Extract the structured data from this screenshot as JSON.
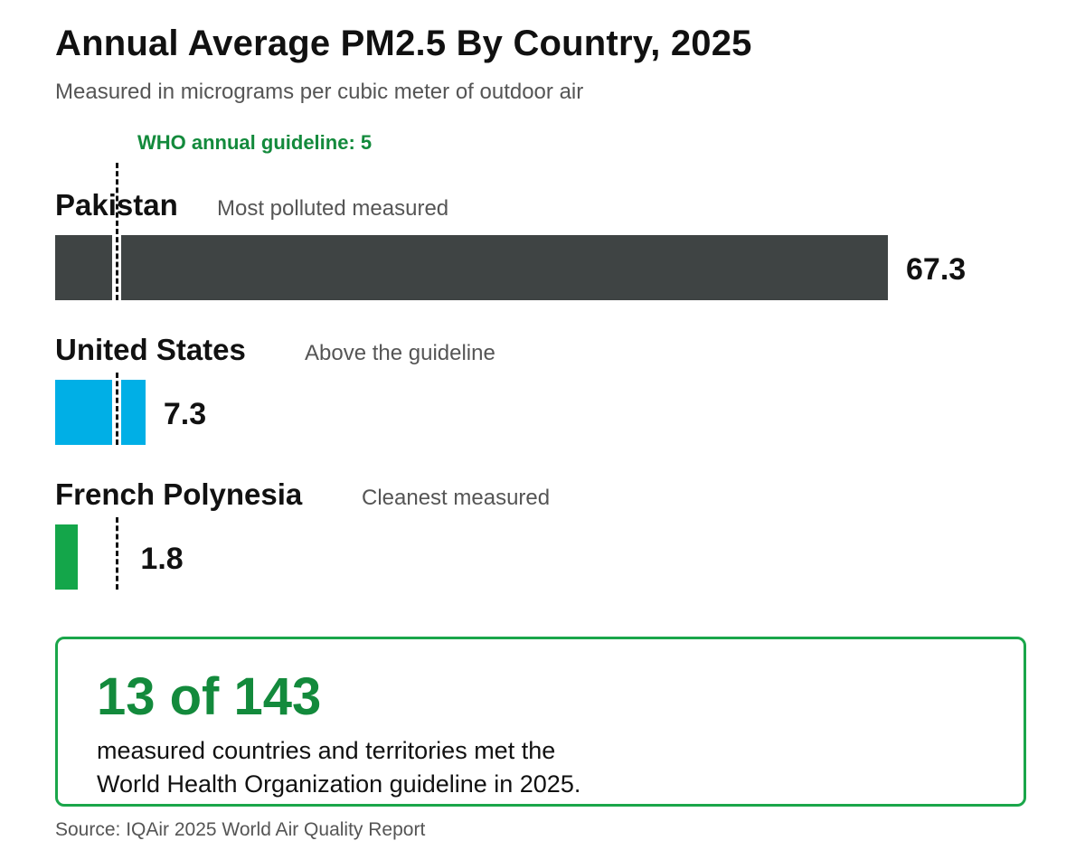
{
  "colors": {
    "guideline": "#138a3c",
    "pakistan": "#3f4444",
    "united_states": "#00afe6",
    "french_polynesia": "#14a64a",
    "callout_border": "#1aa64a"
  },
  "chart_data": {
    "type": "bar",
    "orientation": "horizontal",
    "title": "Annual Average PM2.5 By Country, 2025",
    "subtitle": "Measured in micrograms per cubic meter of outdoor air",
    "categories": [
      "Pakistan",
      "United States",
      "French Polynesia"
    ],
    "values": [
      67.3,
      7.3,
      1.8
    ],
    "value_labels": [
      "67.3",
      "7.3",
      "1.8"
    ],
    "notes": [
      "Most polluted measured",
      "Above the guideline",
      "Cleanest measured"
    ],
    "reference_line": {
      "value": 5,
      "label": "WHO annual guideline: 5"
    },
    "grid": false
  },
  "callout": {
    "headline": "13 of 143",
    "line1": "measured countries and territories met the",
    "line2": "World Health Organization guideline in 2025."
  },
  "source": "Source: IQAir 2025 World Air Quality Report"
}
